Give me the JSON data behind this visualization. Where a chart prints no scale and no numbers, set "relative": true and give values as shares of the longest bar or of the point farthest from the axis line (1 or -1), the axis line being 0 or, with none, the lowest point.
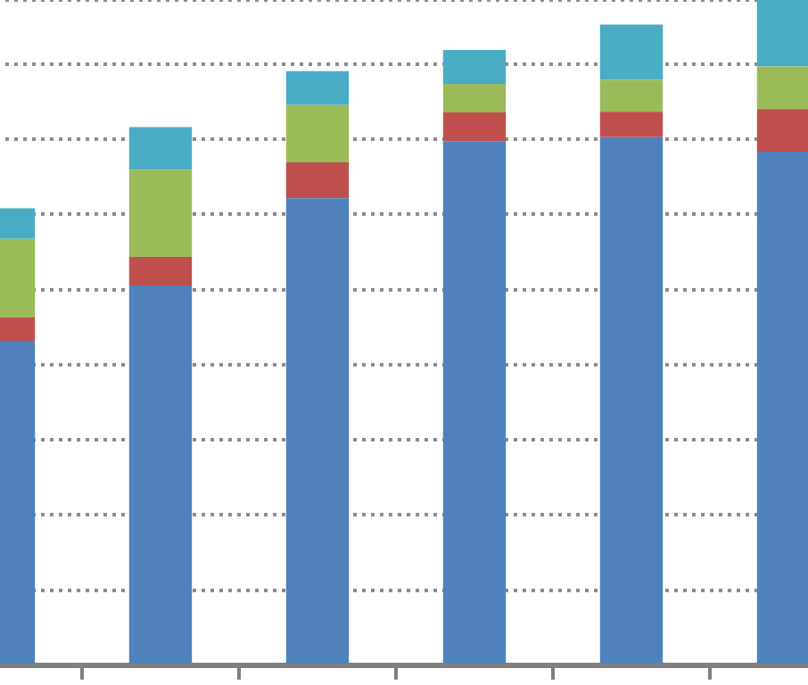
{
  "chart_data": {
    "type": "bar",
    "stacked": true,
    "relative": true,
    "grid": "y",
    "legend": false,
    "categories": [
      null,
      null,
      null,
      null,
      null,
      null
    ],
    "series": [
      {
        "color": "#4f81bd",
        "values": [
          0.488,
          0.571,
          0.702,
          0.788,
          0.794,
          0.772
        ]
      },
      {
        "color": "#c0504d",
        "values": [
          0.035,
          0.043,
          0.054,
          0.043,
          0.038,
          0.064
        ]
      },
      {
        "color": "#9bbb59",
        "values": [
          0.118,
          0.131,
          0.086,
          0.043,
          0.048,
          0.064
        ]
      },
      {
        "color": "#4bacc6",
        "values": [
          0.046,
          0.064,
          0.051,
          0.051,
          0.083,
          0.1
        ]
      }
    ]
  }
}
